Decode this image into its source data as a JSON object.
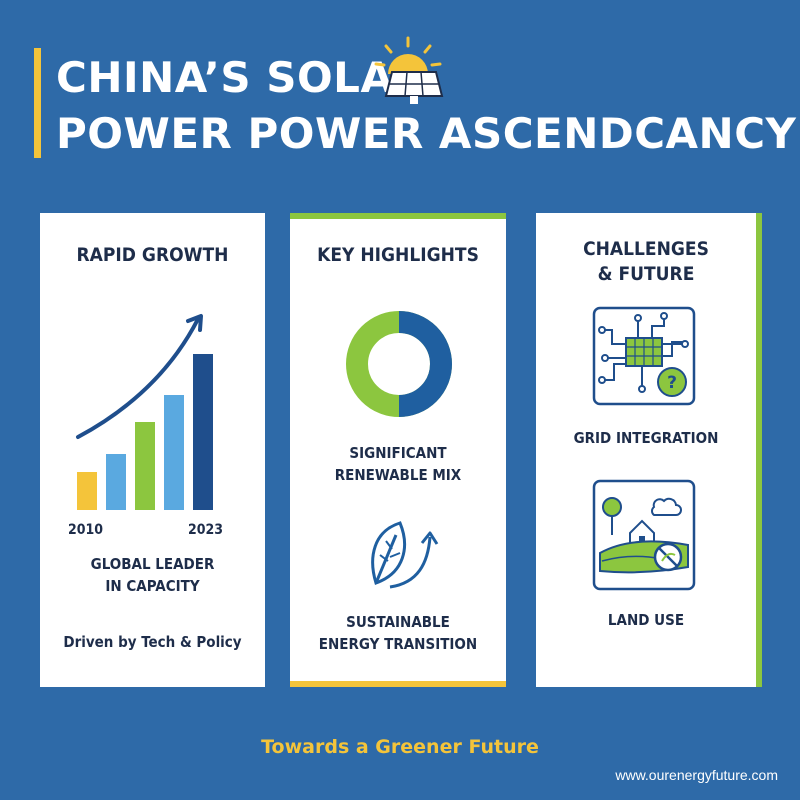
{
  "title": {
    "line1": "CHINA’S SOLAR",
    "line2": "POWER POWER ASCENDCANCY"
  },
  "icons": {
    "title_icon": "sun-solar-panel-icon"
  },
  "cards": {
    "growth": {
      "title": "RAPID GROWTH",
      "start_label": "2010",
      "end_label": "2023",
      "text_line1": "GLOBAL LEADER",
      "text_line2": "IN CAPACITY",
      "footer": "Driven by Tech & Policy",
      "bar_colors": [
        "#f4c43a",
        "#5aa9e0",
        "#8cc63f",
        "#5aa9e0",
        "#1f4e8c"
      ],
      "icon": "growth-arrow-icon"
    },
    "highlights": {
      "title": "KEY HIGHLIGHTS",
      "text1_line1": "SIGNIFICANT",
      "text1_line2": "RENEWABLE MIX",
      "text2_line1": "SUSTAINABLE",
      "text2_line2": "ENERGY TRANSITION",
      "donut_colors": [
        "#8cc63f",
        "#1f5fa0"
      ],
      "icons": [
        "donut-chart-icon",
        "leaf-arrow-icon"
      ]
    },
    "challenges": {
      "title_line1": "CHALLENGES",
      "title_line2": "& FUTURE",
      "label1": "GRID INTEGRATION",
      "label2": "LAND USE",
      "icons": [
        "grid-circuit-icon",
        "land-use-icon"
      ]
    }
  },
  "footer": {
    "tagline": "Towards a Greener Future",
    "url": "www.ourenergyfuture.com"
  },
  "colors": {
    "background": "#2e6aa8",
    "accent_yellow": "#f4c43a",
    "accent_green": "#8cc63f",
    "dark_blue": "#1f4e8c",
    "light_blue": "#5aa9e0"
  }
}
